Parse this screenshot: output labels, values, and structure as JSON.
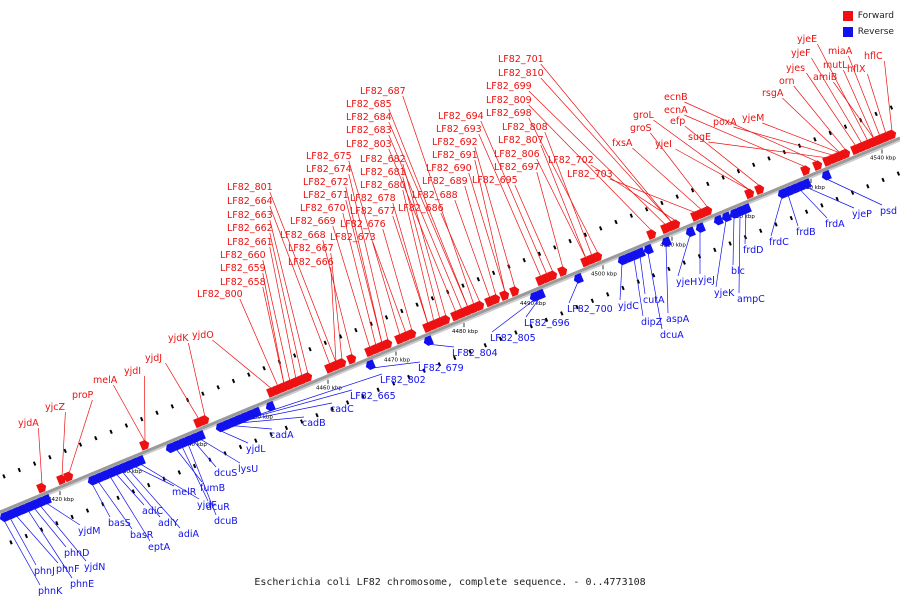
{
  "legend": {
    "forward_label": "Forward",
    "reverse_label": "Reverse",
    "forward_color": "#ff0000",
    "reverse_color": "#0000ff"
  },
  "caption": "Escherichia coli LF82 chromosome, complete sequence. - 0..4773108",
  "colors": {
    "backbone": "#9a9a9a",
    "forward": "#ee1111",
    "reverse": "#1111ee",
    "tick": "#000000"
  },
  "scale_labels": [
    "4420 kbp",
    "4430 kbp",
    "4440 kbp",
    "4450 kbp",
    "4460 kbp",
    "4470 kbp",
    "4480 kbp",
    "4490 kbp",
    "4500 kbp",
    "4510 kbp",
    "4520 kbp",
    "4530 kbp",
    "4540 kbp"
  ],
  "forward_genes": [
    "yjdA",
    "yjcZ",
    "proP",
    "melA",
    "yjdI",
    "yjdJ",
    "yjdK",
    "yjdO",
    "LF82_800",
    "LF82_658",
    "LF82_659",
    "LF82_660",
    "LF82_661",
    "LF82_662",
    "LF82_663",
    "LF82_664",
    "LF82_801",
    "LF82_666",
    "LF82_667",
    "LF82_668",
    "LF82_669",
    "LF82_670",
    "LF82_671",
    "LF82_672",
    "LF82_674",
    "LF82_675",
    "LF82_673",
    "LF82_676",
    "LF82_677",
    "LF82_678",
    "LF82_680",
    "LF82_681",
    "LF82_682",
    "LF82_803",
    "LF82_683",
    "LF82_684",
    "LF82_685",
    "LF82_687",
    "LF82_686",
    "LF82_688",
    "LF82_689",
    "LF82_690",
    "LF82_691",
    "LF82_692",
    "LF82_693",
    "LF82_694",
    "LF82_695",
    "LF82_697",
    "LF82_806",
    "LF82_807",
    "LF82_808",
    "LF82_698",
    "LF82_809",
    "LF82_699",
    "LF82_810",
    "LF82_701",
    "LF82_702",
    "LF82_703",
    "fxsA",
    "groS",
    "groL",
    "yjeI",
    "efp",
    "ecnA",
    "ecnB",
    "sugE",
    "poxA",
    "yjeM",
    "rsgA",
    "orn",
    "yjes",
    "yjeF",
    "yjeE",
    "amiB",
    "mutL",
    "miaA",
    "hflX",
    "hflC"
  ],
  "reverse_genes": [
    "phnK",
    "phnJ",
    "phnF",
    "phnE",
    "phnD",
    "yjdN",
    "yjdM",
    "basS",
    "basR",
    "eptA",
    "adiC",
    "adiY",
    "adiA",
    "melR",
    "yjdF",
    "fumB",
    "dcuR",
    "dcuB",
    "dcuS",
    "lysU",
    "yjdL",
    "cadA",
    "cadB",
    "cadC",
    "LF82_665",
    "LF82_802",
    "LF82_679",
    "LF82_804",
    "LF82_805",
    "LF82_696",
    "LF82_700",
    "yjdC",
    "dipZ",
    "cutA",
    "dcuA",
    "aspA",
    "yjeH",
    "yjeJ",
    "yjeK",
    "blc",
    "ampC",
    "frdD",
    "frdC",
    "frdB",
    "frdA",
    "yjeP",
    "psd"
  ]
}
